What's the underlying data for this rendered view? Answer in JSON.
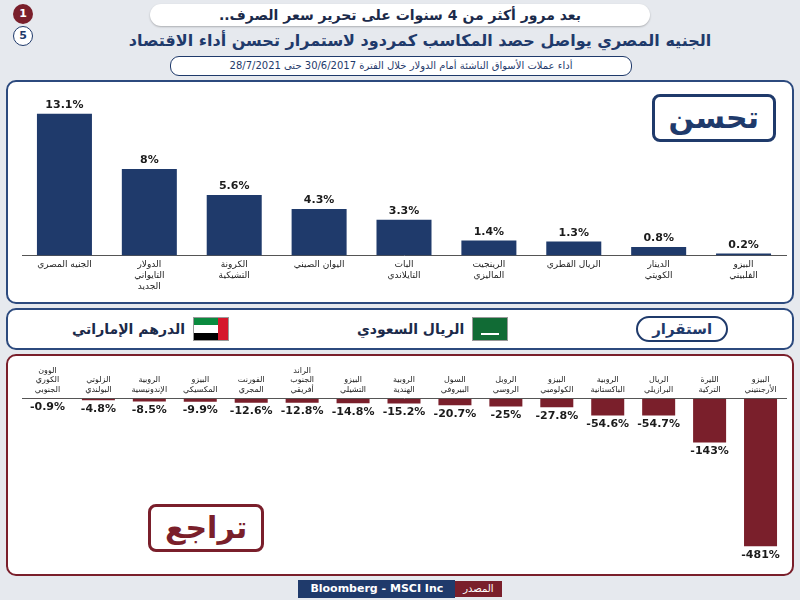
{
  "header": {
    "kicker": "بعد مرور أكثر من 4 سنوات على تحرير سعر الصرف..",
    "title": "الجنيه المصري يواصل حصد المكاسب كمردود لاستمرار تحسن أداء الاقتصاد",
    "subtitle": "أداء عملات الأسواق الناشئة أمام الدولار خلال الفترة 30/6/2017 حتى 28/7/2021",
    "page": "1",
    "pages": "5"
  },
  "chart_data": [
    {
      "type": "bar",
      "title": "تحسن",
      "categories": [
        "الجنيه المصري",
        "الدولار التايواني الجديد",
        "الكرونة التشيكية",
        "اليوان الصيني",
        "البات التايلاندي",
        "الرينجيت الماليزي",
        "الريال القطري",
        "الدينار الكويتي",
        "البيزو الفلبيني"
      ],
      "values": [
        13.1,
        8,
        5.6,
        4.3,
        3.3,
        1.4,
        1.3,
        0.8,
        0.2
      ],
      "value_labels": [
        "13.1%",
        "8%",
        "5.6%",
        "4.3%",
        "3.3%",
        "1.4%",
        "1.3%",
        "0.8%",
        "0.2%"
      ],
      "color": "#1f3a6b",
      "ylim": [
        0,
        14
      ],
      "yticks": [
        0,
        14
      ],
      "grid": false,
      "data_labels": true,
      "tick_labels": "x"
    },
    {
      "type": "bar",
      "title": "تراجع",
      "categories": [
        "الوون الكوري الجنوبي",
        "الزلوتي البولندي",
        "الروبية الإندونيسية",
        "البيزو المكسيكي",
        "الفورنت المجري",
        "الراند الجنوب أفريقي",
        "البيزو التشيلي",
        "الروبية الهندية",
        "السول البيروفي",
        "الروبل الروسي",
        "البيزو الكولومبي",
        "الروبية الباكستانية",
        "الريال البرازيلي",
        "الليرة التركية",
        "البيزو الأرجنتيني"
      ],
      "values": [
        -0.9,
        -4.8,
        -8.5,
        -9.9,
        -12.6,
        -12.8,
        -14.8,
        -15.2,
        -20.7,
        -25,
        -27.8,
        -54.6,
        -54.7,
        -143,
        -481
      ],
      "value_labels": [
        "-0.9%",
        "-4.8%",
        "-8.5%",
        "-9.9%",
        "-12.6%",
        "-12.8%",
        "-14.8%",
        "-15.2%",
        "-20.7%",
        "-25%",
        "-27.8%",
        "-54.6%",
        "-54.7%",
        "-143%",
        "-481%"
      ],
      "color": "#7a1f2b",
      "ylim": [
        -500,
        0
      ],
      "yticks": [
        -500,
        0
      ],
      "grid": false,
      "data_labels": true,
      "tick_labels": "x"
    }
  ],
  "stability": {
    "label": "استقرار",
    "currencies": [
      "الريال السعودي",
      "الدرهم الإماراتي"
    ]
  },
  "source": {
    "label": "المصدر",
    "text": "Bloomberg - MSCI Inc"
  }
}
